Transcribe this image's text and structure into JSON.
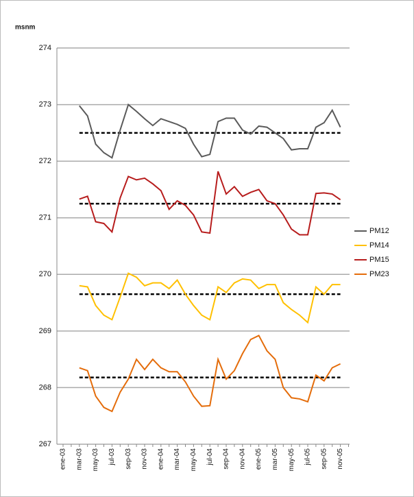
{
  "chart_data": {
    "type": "line",
    "y_label": "msnm",
    "categories": [
      "ene-03",
      null,
      "mar-03",
      null,
      "may-03",
      null,
      "jul-03",
      null,
      "sep-03",
      null,
      "nov-03",
      null,
      "ene-04",
      null,
      "mar-04",
      null,
      "may-04",
      null,
      "jul-04",
      null,
      "sep-04",
      null,
      "nov-04",
      null,
      "ene-05",
      null,
      "mar-05",
      null,
      "may-05",
      null,
      "jul-05",
      null,
      "sep-05",
      null,
      "nov-05",
      null
    ],
    "ylim": [
      267,
      274
    ],
    "yticks": [
      267,
      268,
      269,
      270,
      271,
      272,
      273,
      274
    ],
    "grid": true,
    "legend": "right",
    "series": [
      {
        "name": "PM12",
        "color": "#5a5a5a",
        "mean": 272.5,
        "values": [
          null,
          null,
          272.98,
          272.8,
          272.3,
          272.15,
          272.06,
          272.55,
          273.0,
          272.88,
          272.75,
          272.63,
          272.75,
          272.7,
          272.65,
          272.58,
          272.3,
          272.08,
          272.12,
          272.7,
          272.76,
          272.76,
          272.55,
          272.48,
          272.62,
          272.6,
          272.5,
          272.4,
          272.2,
          272.22,
          272.22,
          272.6,
          272.68,
          272.9,
          272.6,
          null
        ]
      },
      {
        "name": "PM14",
        "color": "#ffc000",
        "mean": 269.65,
        "values": [
          null,
          null,
          269.8,
          269.78,
          269.45,
          269.28,
          269.2,
          269.6,
          270.02,
          269.95,
          269.8,
          269.85,
          269.85,
          269.75,
          269.9,
          269.65,
          269.45,
          269.28,
          269.2,
          269.78,
          269.68,
          269.85,
          269.92,
          269.9,
          269.75,
          269.82,
          269.82,
          269.5,
          269.38,
          269.28,
          269.15,
          269.78,
          269.65,
          269.82,
          269.82,
          null
        ]
      },
      {
        "name": "PM15",
        "color": "#b71c1c",
        "mean": 271.25,
        "values": [
          null,
          null,
          271.33,
          271.38,
          270.93,
          270.9,
          270.75,
          271.35,
          271.73,
          271.67,
          271.7,
          271.6,
          271.48,
          271.15,
          271.3,
          271.22,
          271.05,
          270.75,
          270.73,
          271.82,
          271.42,
          271.55,
          271.38,
          271.45,
          271.5,
          271.3,
          271.25,
          271.05,
          270.8,
          270.7,
          270.7,
          271.43,
          271.44,
          271.42,
          271.32,
          null
        ]
      },
      {
        "name": "PM23",
        "color": "#e46c0a",
        "mean": 268.18,
        "values": [
          null,
          null,
          268.35,
          268.3,
          267.85,
          267.65,
          267.58,
          267.92,
          268.15,
          268.5,
          268.32,
          268.5,
          268.35,
          268.28,
          268.28,
          268.1,
          267.85,
          267.67,
          267.68,
          268.5,
          268.15,
          268.3,
          268.6,
          268.85,
          268.92,
          268.65,
          268.5,
          268.0,
          267.82,
          267.8,
          267.75,
          268.22,
          268.12,
          268.35,
          268.42,
          null
        ]
      }
    ]
  }
}
